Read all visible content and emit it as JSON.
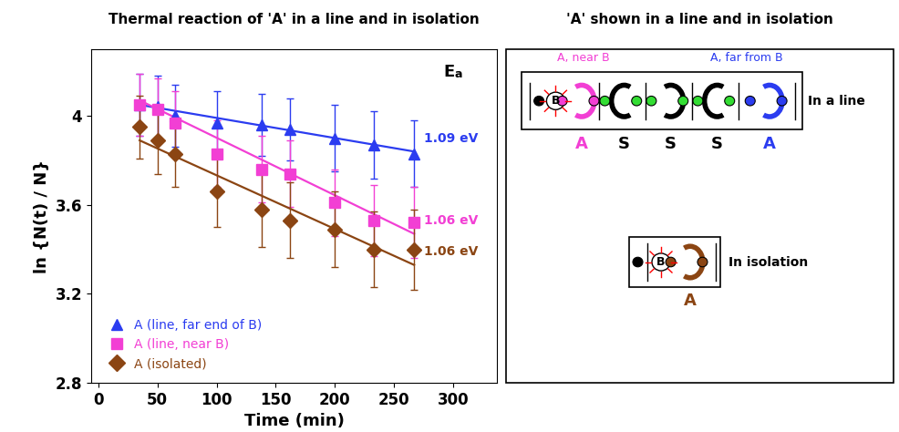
{
  "chart_data": {
    "type": "scatter",
    "title": "Thermal reaction of 'A' in a line and in isolation",
    "x_label": "Time (min)",
    "y_label": "ln {N(t) / N}",
    "ea_heading": "Ea",
    "x": [
      35,
      50,
      65,
      100,
      138,
      162,
      200,
      233,
      267
    ],
    "xlim": [
      -6,
      337
    ],
    "xticks": [
      0,
      50,
      100,
      150,
      200,
      250,
      300
    ],
    "ylim": [
      2.8,
      4.3
    ],
    "yticks": [
      2.8,
      3.2,
      3.6,
      4
    ],
    "legend": "lower left",
    "series": [
      {
        "name": "A (line, far end of B)",
        "color": "#2b3cf0",
        "marker": "triangle",
        "values": [
          4.05,
          4.04,
          4.0,
          3.97,
          3.96,
          3.94,
          3.9,
          3.87,
          3.83
        ],
        "errors": [
          0.14,
          0.14,
          0.14,
          0.14,
          0.14,
          0.14,
          0.15,
          0.15,
          0.15
        ],
        "fit": {
          "x": [
            35,
            267
          ],
          "values": [
            4.05,
            3.84
          ]
        },
        "ea_label": "1.09 eV"
      },
      {
        "name": "A (line, near B)",
        "color": "#f23fd4",
        "marker": "square",
        "values": [
          4.05,
          4.03,
          3.97,
          3.83,
          3.76,
          3.74,
          3.61,
          3.53,
          3.52
        ],
        "errors": [
          0.14,
          0.14,
          0.14,
          0.15,
          0.15,
          0.15,
          0.15,
          0.16,
          0.16
        ],
        "fit": {
          "x": [
            35,
            267
          ],
          "values": [
            4.07,
            3.47
          ]
        },
        "ea_label": "1.06 eV"
      },
      {
        "name": "A (isolated)",
        "color": "#8b4513",
        "marker": "diamond",
        "values": [
          3.95,
          3.89,
          3.83,
          3.66,
          3.58,
          3.53,
          3.49,
          3.4,
          3.4
        ],
        "errors": [
          0.14,
          0.15,
          0.15,
          0.16,
          0.17,
          0.17,
          0.17,
          0.17,
          0.18
        ],
        "fit": {
          "x": [
            35,
            267
          ],
          "values": [
            3.89,
            3.33
          ]
        },
        "ea_label": "1.06 eV"
      }
    ]
  },
  "diagram": {
    "title": "'A' shown in a line and in isolation",
    "line_box": {
      "label": "In a line",
      "near_label": "A, near B",
      "far_label": "A, far from B",
      "center_symbol": "B",
      "units": [
        "A",
        "S",
        "S",
        "S",
        "A"
      ],
      "colors": [
        "#f23fd4",
        "#000000",
        "#000000",
        "#000000",
        "#2b3cf0"
      ]
    },
    "isolation_box": {
      "label": "In isolation",
      "center_symbol": "B",
      "unit": "A",
      "color": "#8b4513"
    }
  }
}
